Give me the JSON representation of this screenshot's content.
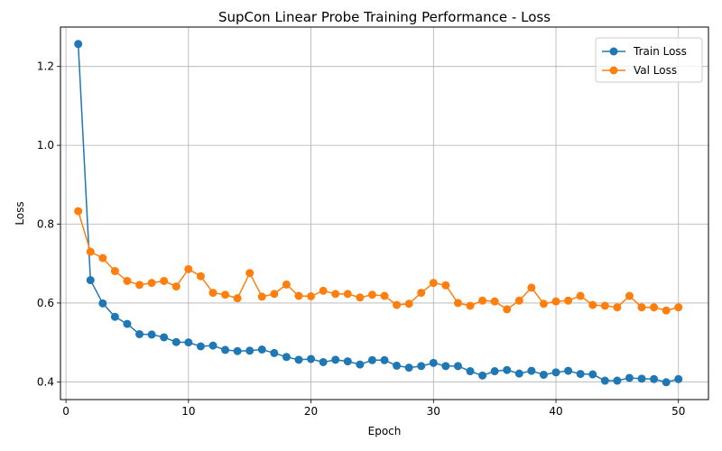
{
  "chart_data": {
    "type": "line",
    "title": "SupCon Linear Probe Training Performance - Loss",
    "xlabel": "Epoch",
    "ylabel": "Loss",
    "xlim": [
      -0.45,
      52.45
    ],
    "ylim": [
      0.355,
      1.3
    ],
    "xticks": [
      0,
      10,
      20,
      30,
      40,
      50
    ],
    "yticks": [
      0.4,
      0.6,
      0.8,
      1.0,
      1.2
    ],
    "ytick_labels": [
      "0.4",
      "0.6",
      "0.8",
      "1.0",
      "1.2"
    ],
    "grid": true,
    "legend_position": "top-right",
    "x": [
      1,
      2,
      3,
      4,
      5,
      6,
      7,
      8,
      9,
      10,
      11,
      12,
      13,
      14,
      15,
      16,
      17,
      18,
      19,
      20,
      21,
      22,
      23,
      24,
      25,
      26,
      27,
      28,
      29,
      30,
      31,
      32,
      33,
      34,
      35,
      36,
      37,
      38,
      39,
      40,
      41,
      42,
      43,
      44,
      45,
      46,
      47,
      48,
      49,
      50
    ],
    "series": [
      {
        "name": "Train Loss",
        "color": "#1f77b4",
        "values": [
          1.257,
          0.658,
          0.599,
          0.565,
          0.547,
          0.521,
          0.52,
          0.513,
          0.501,
          0.5,
          0.49,
          0.492,
          0.481,
          0.478,
          0.479,
          0.482,
          0.473,
          0.463,
          0.456,
          0.458,
          0.45,
          0.456,
          0.452,
          0.444,
          0.455,
          0.455,
          0.441,
          0.436,
          0.44,
          0.448,
          0.44,
          0.44,
          0.427,
          0.416,
          0.427,
          0.43,
          0.421,
          0.428,
          0.418,
          0.424,
          0.428,
          0.42,
          0.419,
          0.403,
          0.403,
          0.41,
          0.408,
          0.407,
          0.399,
          0.407
        ]
      },
      {
        "name": "Val Loss",
        "color": "#ff7f0e",
        "values": [
          0.833,
          0.73,
          0.714,
          0.681,
          0.656,
          0.646,
          0.651,
          0.656,
          0.642,
          0.686,
          0.668,
          0.626,
          0.621,
          0.612,
          0.676,
          0.616,
          0.623,
          0.647,
          0.618,
          0.617,
          0.631,
          0.623,
          0.623,
          0.614,
          0.621,
          0.618,
          0.595,
          0.598,
          0.626,
          0.651,
          0.645,
          0.6,
          0.593,
          0.606,
          0.604,
          0.584,
          0.606,
          0.639,
          0.598,
          0.604,
          0.606,
          0.618,
          0.595,
          0.593,
          0.589,
          0.618,
          0.589,
          0.589,
          0.581,
          0.589
        ]
      }
    ]
  }
}
